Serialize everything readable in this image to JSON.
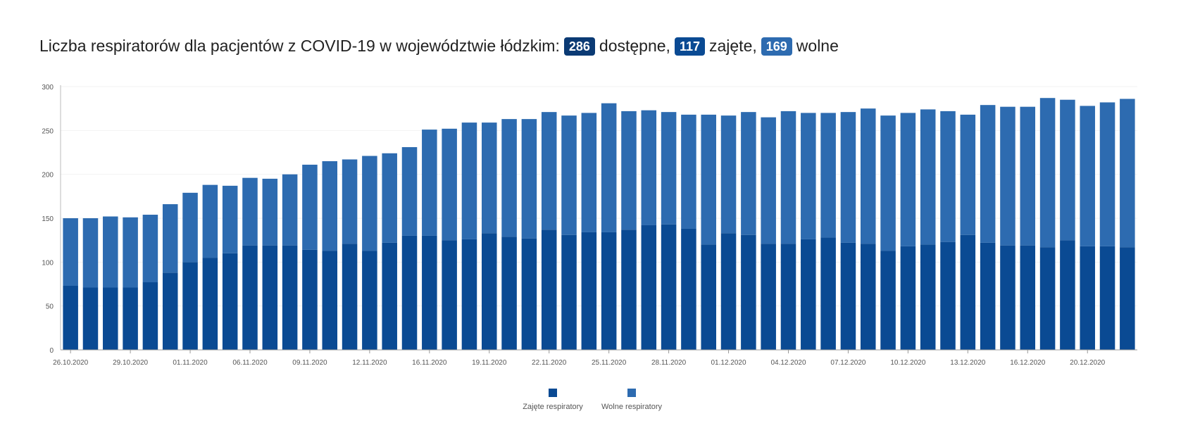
{
  "header": {
    "prefix": "Liczba respiratorów dla pacjentów z COVID-19 w województwie łódzkim:",
    "available_value": "286",
    "available_label": "dostępne,",
    "occupied_value": "117",
    "occupied_label": "zajęte,",
    "free_value": "169",
    "free_label": "wolne"
  },
  "legend": {
    "occupied": "Zajęte respiratory",
    "free": "Wolne respiratory"
  },
  "colors": {
    "occupied": "#0a4a93",
    "free": "#2d6bb0",
    "badge_available": "#0b3a74"
  },
  "chart_data": {
    "type": "bar",
    "stacked": true,
    "ylim": [
      0,
      300
    ],
    "yticks": [
      0,
      50,
      100,
      150,
      200,
      250,
      300
    ],
    "x_tick_labels": [
      "26.10.2020",
      "29.10.2020",
      "01.11.2020",
      "06.11.2020",
      "09.11.2020",
      "12.11.2020",
      "16.11.2020",
      "19.11.2020",
      "22.11.2020",
      "25.11.2020",
      "28.11.2020",
      "01.12.2020",
      "04.12.2020",
      "07.12.2020",
      "10.12.2020",
      "13.12.2020",
      "16.12.2020",
      "20.12.2020"
    ],
    "x_tick_index": [
      0,
      3,
      6,
      9,
      12,
      15,
      18,
      21,
      24,
      27,
      30,
      33,
      36,
      39,
      42,
      45,
      48,
      51
    ],
    "series": [
      {
        "name": "Zajęte respiratory",
        "values": [
          73,
          71,
          71,
          71,
          77,
          88,
          100,
          105,
          110,
          119,
          119,
          119,
          114,
          113,
          121,
          113,
          122,
          130,
          130,
          125,
          126,
          133,
          129,
          127,
          137,
          131,
          134,
          134,
          137,
          142,
          143,
          138,
          120,
          133,
          131,
          121,
          121,
          126,
          128,
          122,
          121,
          113,
          118,
          120,
          123,
          131,
          122,
          119,
          119,
          117,
          125,
          118,
          118,
          117
        ]
      },
      {
        "name": "Wolne respiratory",
        "values": [
          77,
          79,
          81,
          80,
          77,
          78,
          79,
          83,
          77,
          77,
          76,
          81,
          97,
          102,
          96,
          108,
          102,
          101,
          121,
          127,
          133,
          126,
          134,
          136,
          134,
          136,
          136,
          147,
          135,
          131,
          128,
          130,
          148,
          134,
          140,
          144,
          151,
          144,
          142,
          149,
          154,
          154,
          152,
          154,
          149,
          137,
          157,
          158,
          158,
          170,
          160,
          160,
          164,
          169
        ]
      }
    ]
  }
}
